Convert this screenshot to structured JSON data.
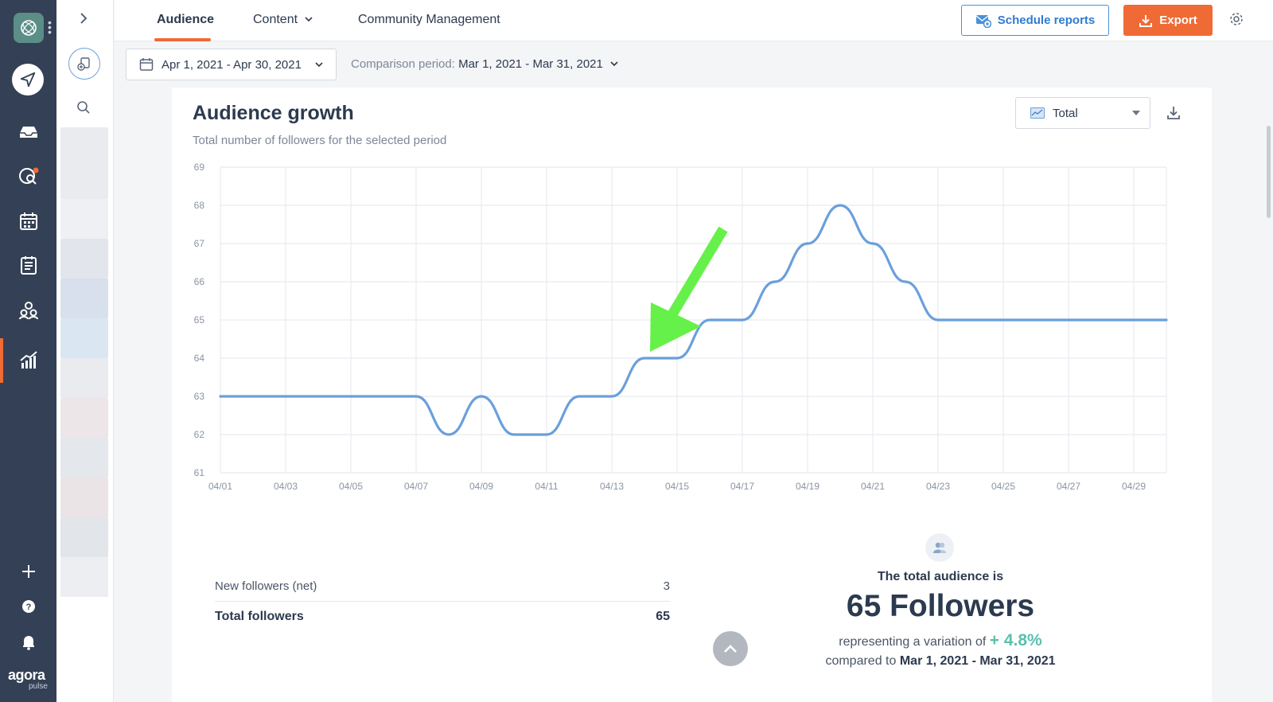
{
  "nav": {
    "brand": "agora",
    "brand_sub": "pulse"
  },
  "tabs": [
    {
      "label": "Audience",
      "active": true
    },
    {
      "label": "Content",
      "active": false
    },
    {
      "label": "Community Management",
      "active": false
    }
  ],
  "header_actions": {
    "schedule_label": "Schedule reports",
    "export_label": "Export"
  },
  "filters": {
    "date_range": "Apr 1, 2021 - Apr 30, 2021",
    "comparison_label": "Comparison period:",
    "comparison_value": "Mar 1, 2021 - Mar 31, 2021"
  },
  "card": {
    "title": "Audience growth",
    "subtitle": "Total number of followers for the selected period",
    "selector_value": "Total"
  },
  "chart_data": {
    "type": "line",
    "title": "",
    "xlabel": "",
    "ylabel": "",
    "ylim": [
      61,
      69
    ],
    "yticks": [
      61,
      62,
      63,
      64,
      65,
      66,
      67,
      68,
      69
    ],
    "xtick_labels": [
      "04/01",
      "04/03",
      "04/05",
      "04/07",
      "04/09",
      "04/11",
      "04/13",
      "04/15",
      "04/17",
      "04/19",
      "04/21",
      "04/23",
      "04/25",
      "04/27",
      "04/29"
    ],
    "grid": true,
    "color": "#6a9fdc",
    "x": [
      "04/01",
      "04/02",
      "04/03",
      "04/04",
      "04/05",
      "04/06",
      "04/07",
      "04/08",
      "04/09",
      "04/10",
      "04/11",
      "04/12",
      "04/13",
      "04/14",
      "04/15",
      "04/16",
      "04/17",
      "04/18",
      "04/19",
      "04/20",
      "04/21",
      "04/22",
      "04/23",
      "04/24",
      "04/25",
      "04/26",
      "04/27",
      "04/28",
      "04/29",
      "04/30"
    ],
    "values": [
      63,
      63,
      63,
      63,
      63,
      63,
      63,
      62,
      63,
      62,
      62,
      63,
      63,
      64,
      64,
      65,
      65,
      66,
      67,
      68,
      67,
      66,
      65,
      65,
      65,
      65,
      65,
      65,
      65,
      65
    ]
  },
  "stats": {
    "new_followers_label": "New followers (net)",
    "new_followers_value": "3",
    "total_followers_label": "Total followers",
    "total_followers_value": "65"
  },
  "summary": {
    "line1": "The total audience is",
    "big": "65 Followers",
    "variation_prefix": "representing a variation of",
    "variation_value": "+ 4.8%",
    "compared_prefix": "compared to",
    "compared_period": "Mar 1, 2021 - Mar 31, 2021"
  }
}
